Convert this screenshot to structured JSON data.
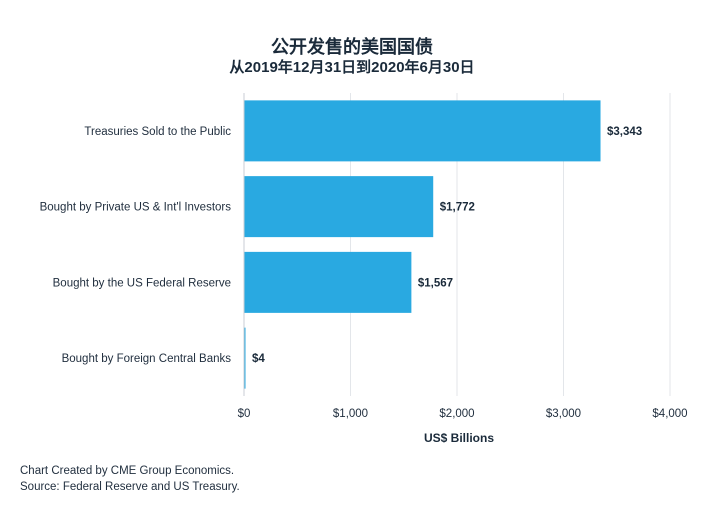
{
  "chart_data": {
    "type": "bar",
    "orientation": "horizontal",
    "title": "公开发售的美国国债",
    "subtitle": "从2019年12月31日到2020年6月30日",
    "xlabel": "US$ Billions",
    "ylabel": "",
    "categories": [
      "Treasuries Sold to the Public",
      "Bought by Private US & Int'l Investors",
      "Bought by the US Federal Reserve",
      "Bought by Foreign Central Banks"
    ],
    "values": [
      3343,
      1772,
      1567,
      4
    ],
    "value_labels": [
      "$3,343",
      "$1,772",
      "$1,567",
      "$4"
    ],
    "xlim": [
      0,
      4000
    ],
    "x_ticks": [
      0,
      1000,
      2000,
      3000,
      4000
    ],
    "x_tick_labels": [
      "$0",
      "$1,000",
      "$2,000",
      "$3,000",
      "$4,000"
    ],
    "grid": true,
    "bar_color": "#29a9e1"
  },
  "footer": {
    "credit": "Chart Created by CME Group Economics.",
    "source": "Source: Federal Reserve and US Treasury."
  }
}
